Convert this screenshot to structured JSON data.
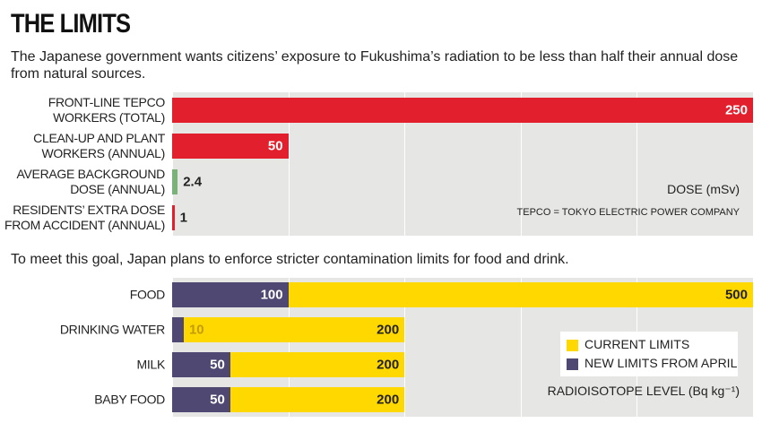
{
  "title": "THE LIMITS",
  "subtitle": "The Japanese government wants citizens’ exposure to Fukushima’s radiation to be less than half their annual dose from natural sources.",
  "chart_data": [
    {
      "type": "bar",
      "categories": [
        "FRONT-LINE TEPCO\nWORKERS (TOTAL)",
        "CLEAN-UP AND PLANT\nWORKERS (ANNUAL)",
        "AVERAGE BACKGROUND\nDOSE (ANNUAL)",
        "RESIDENTS’ EXTRA DOSE\nFROM ACCIDENT (ANNUAL)"
      ],
      "values": [
        250,
        50,
        2.4,
        1
      ],
      "colors": [
        "#e21f2d",
        "#e21f2d",
        "#7bb27a",
        "#e21f2d"
      ],
      "xlim": [
        0,
        250
      ],
      "xticks": [
        0,
        50,
        100,
        150,
        200,
        250
      ],
      "grid": true,
      "xlabel": "DOSE (mSv)",
      "annotation": "TEPCO = TOKYO ELECTRIC POWER COMPANY"
    },
    {
      "type": "bar",
      "subtitle": "To meet this goal, Japan plans to enforce stricter contamination limits for food and drink.",
      "categories": [
        "FOOD",
        "DRINKING WATER",
        "MILK",
        "BABY FOOD"
      ],
      "barmode": "overlay",
      "series": [
        {
          "name": "CURRENT LIMITS",
          "color": "#ffd800",
          "values": [
            500,
            200,
            200,
            200
          ]
        },
        {
          "name": "NEW LIMITS FROM APRIL",
          "color": "#4e4873",
          "values": [
            100,
            10,
            50,
            50
          ]
        }
      ],
      "xlim": [
        0,
        500
      ],
      "xticks": [
        0,
        100,
        200,
        300,
        400,
        500
      ],
      "grid": true,
      "xlabel": "RADIOISOTOPE LEVEL (Bq kg⁻¹)",
      "legend": "right"
    }
  ]
}
